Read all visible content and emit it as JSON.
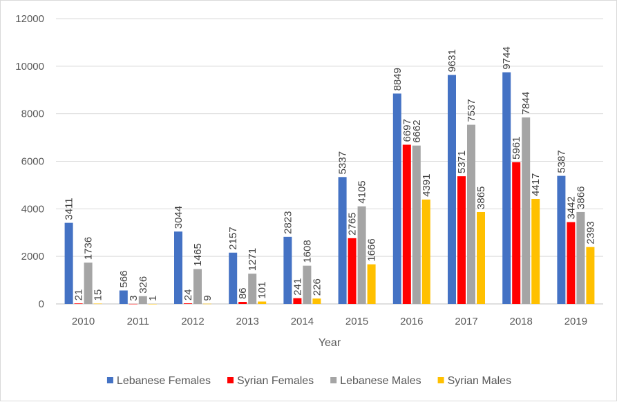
{
  "chart_data": {
    "type": "bar",
    "title": "",
    "xlabel": "Year",
    "ylabel": "",
    "ylim": [
      0,
      12000
    ],
    "yticks": [
      0,
      2000,
      4000,
      6000,
      8000,
      10000,
      12000
    ],
    "grid": true,
    "legend": "bottom",
    "categories": [
      "2010",
      "2011",
      "2012",
      "2013",
      "2014",
      "2015",
      "2016",
      "2017",
      "2018",
      "2019"
    ],
    "series": [
      {
        "name": "Lebanese Females",
        "color": "#4472c4",
        "values": [
          3411,
          566,
          3044,
          2157,
          2823,
          5337,
          8849,
          9631,
          9744,
          5387
        ]
      },
      {
        "name": "Syrian Females",
        "color": "#ff0000",
        "values": [
          21,
          3,
          24,
          86,
          241,
          2765,
          6697,
          5371,
          5961,
          3442
        ]
      },
      {
        "name": "Lebanese Males",
        "color": "#a5a5a5",
        "values": [
          1736,
          326,
          1465,
          1271,
          1608,
          4105,
          6662,
          7537,
          7844,
          3866
        ]
      },
      {
        "name": "Syrian Males",
        "color": "#ffc000",
        "values": [
          15,
          1,
          9,
          101,
          226,
          1666,
          4391,
          3865,
          4417,
          2393
        ]
      }
    ]
  }
}
